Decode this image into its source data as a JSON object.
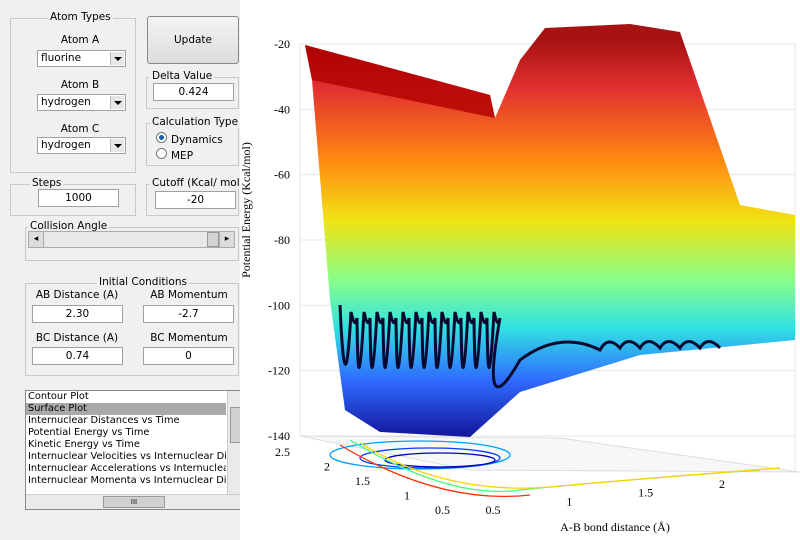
{
  "atom_types": {
    "title": "Atom Types",
    "atom_a": {
      "label": "Atom A",
      "value": "fluorine"
    },
    "atom_b": {
      "label": "Atom B",
      "value": "hydrogen"
    },
    "atom_c": {
      "label": "Atom C",
      "value": "hydrogen"
    }
  },
  "update_button": "Update",
  "delta_value": {
    "label": "Delta Value",
    "value": "0.424"
  },
  "calculation_type": {
    "label": "Calculation Type",
    "options": [
      "Dynamics",
      "MEP"
    ],
    "selected": "Dynamics"
  },
  "steps": {
    "label": "Steps",
    "value": "1000"
  },
  "cutoff": {
    "label": "Cutoff (Kcal/ mol)",
    "value": "-20"
  },
  "collision_angle": {
    "label": "Collision Angle"
  },
  "initial_conditions": {
    "title": "Initial Conditions",
    "ab_distance": {
      "label": "AB Distance (A)",
      "value": "2.30"
    },
    "ab_momentum": {
      "label": "AB Momentum",
      "value": "-2.7"
    },
    "bc_distance": {
      "label": "BC Distance (A)",
      "value": "0.74"
    },
    "bc_momentum": {
      "label": "BC Momentum",
      "value": "0"
    }
  },
  "plot_list": {
    "items": [
      "Contour Plot",
      "Surface Plot",
      "Internuclear Distances vs Time",
      "Potential Energy vs Time",
      "Kinetic Energy vs Time",
      "Internuclear Velocities vs Internuclear Distance",
      "Internuclear Accelerations vs Internuclear Distance",
      "Internuclear Momenta vs Internuclear Distance"
    ],
    "selected": "Surface Plot",
    "scroll_thumb": "III"
  },
  "plot": {
    "z_label": "Potential Energy (Kcal/mol)",
    "x_label": "A-B bond distance (Å)",
    "zticks": [
      -20,
      -40,
      -60,
      -80,
      -100,
      -120,
      -140
    ],
    "xticks": [
      0.5,
      1,
      1.5,
      2
    ],
    "yticks": [
      2.5,
      2,
      1.5,
      1,
      0.5
    ]
  }
}
